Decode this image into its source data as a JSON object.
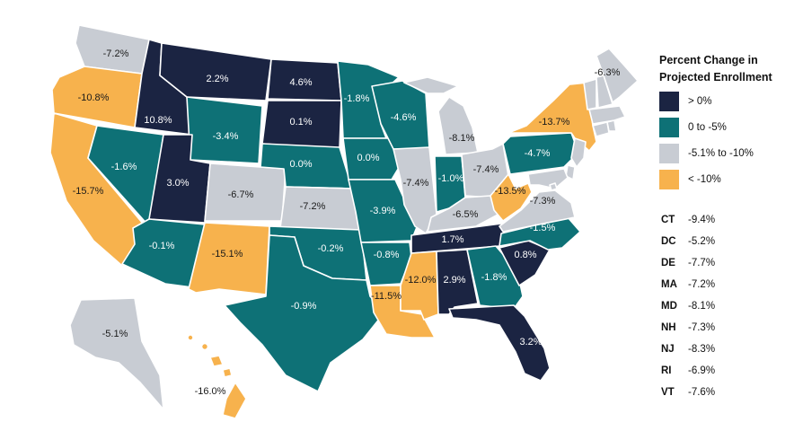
{
  "colors": {
    "positive": "#1b2442",
    "neg_small": "#0e7176",
    "neg_mid": "#c8ccd3",
    "neg_large": "#f7b24d"
  },
  "legend": {
    "title_line1": "Percent Change in",
    "title_line2": "Projected Enrollment",
    "items": [
      {
        "label": "> 0%",
        "color": "#1b2442"
      },
      {
        "label": "0 to -5%",
        "color": "#0e7176"
      },
      {
        "label": "-5.1% to -10%",
        "color": "#c8ccd3"
      },
      {
        "label": "< -10%",
        "color": "#f7b24d"
      }
    ]
  },
  "small_states": [
    {
      "abbr": "CT",
      "value": "-9.4%"
    },
    {
      "abbr": "DC",
      "value": "-5.2%"
    },
    {
      "abbr": "DE",
      "value": "-7.7%"
    },
    {
      "abbr": "MA",
      "value": "-7.2%"
    },
    {
      "abbr": "MD",
      "value": "-8.1%"
    },
    {
      "abbr": "NH",
      "value": "-7.3%"
    },
    {
      "abbr": "NJ",
      "value": "-8.3%"
    },
    {
      "abbr": "RI",
      "value": "-6.9%"
    },
    {
      "abbr": "VT",
      "value": "-7.6%"
    }
  ],
  "states": {
    "WA": {
      "label": "-7.2%",
      "value": -7.2
    },
    "OR": {
      "label": "-10.8%",
      "value": -10.8
    },
    "CA": {
      "label": "-15.7%",
      "value": -15.7
    },
    "ID": {
      "label": "10.8%",
      "value": 10.8
    },
    "NV": {
      "label": "-1.6%",
      "value": -1.6
    },
    "MT": {
      "label": "2.2%",
      "value": 2.2
    },
    "WY": {
      "label": "-3.4%",
      "value": -3.4
    },
    "UT": {
      "label": "3.0%",
      "value": 3.0
    },
    "AZ": {
      "label": "-0.1%",
      "value": -0.1
    },
    "CO": {
      "label": "-6.7%",
      "value": -6.7
    },
    "NM": {
      "label": "-15.1%",
      "value": -15.1
    },
    "ND": {
      "label": "4.6%",
      "value": 4.6
    },
    "SD": {
      "label": "0.1%",
      "value": 0.1
    },
    "NE": {
      "label": "0.0%",
      "value": 0.0
    },
    "KS": {
      "label": "-7.2%",
      "value": -7.2
    },
    "OK": {
      "label": "-0.2%",
      "value": -0.2
    },
    "TX": {
      "label": "-0.9%",
      "value": -0.9
    },
    "MN": {
      "label": "-1.8%",
      "value": -1.8
    },
    "IA": {
      "label": "0.0%",
      "value": 0.0
    },
    "MO": {
      "label": "-3.9%",
      "value": -3.9
    },
    "AR": {
      "label": "-0.8%",
      "value": -0.8
    },
    "LA": {
      "label": "-11.5%",
      "value": -11.5
    },
    "WI": {
      "label": "-4.6%",
      "value": -4.6
    },
    "IL": {
      "label": "-7.4%",
      "value": -7.4
    },
    "MI": {
      "label": "-8.1%",
      "value": -8.1
    },
    "IN": {
      "label": "-1.0%",
      "value": -1.0
    },
    "OH": {
      "label": "-7.4%",
      "value": -7.4
    },
    "KY": {
      "label": "-6.5%",
      "value": -6.5
    },
    "TN": {
      "label": "1.7%",
      "value": 1.7
    },
    "MS": {
      "label": "-12.0%",
      "value": -12.0
    },
    "AL": {
      "label": "2.9%",
      "value": 2.9
    },
    "GA": {
      "label": "-1.8%",
      "value": -1.8
    },
    "FL": {
      "label": "3.2%",
      "value": 3.2
    },
    "SC": {
      "label": "0.8%",
      "value": 0.8
    },
    "NC": {
      "label": "-1.5%",
      "value": -1.5
    },
    "VA": {
      "label": "-7.3%",
      "value": -7.3
    },
    "WV": {
      "label": "-13.5%",
      "value": -13.5
    },
    "PA": {
      "label": "-4.7%",
      "value": -4.7
    },
    "NY": {
      "label": "-13.7%",
      "value": -13.7
    },
    "ME": {
      "label": "-6.3%",
      "value": -6.3
    },
    "AK": {
      "label": "-5.1%",
      "value": -5.1
    },
    "HI": {
      "label": "-16.0%",
      "value": -16.0
    },
    "VT": {
      "value": -7.6
    },
    "NH": {
      "value": -7.3
    },
    "MA": {
      "value": -7.2
    },
    "RI": {
      "value": -6.9
    },
    "CT": {
      "value": -9.4
    },
    "NJ": {
      "value": -8.3
    },
    "DE": {
      "value": -7.7
    },
    "MD": {
      "value": -8.1
    },
    "DC": {
      "value": -5.2
    }
  }
}
